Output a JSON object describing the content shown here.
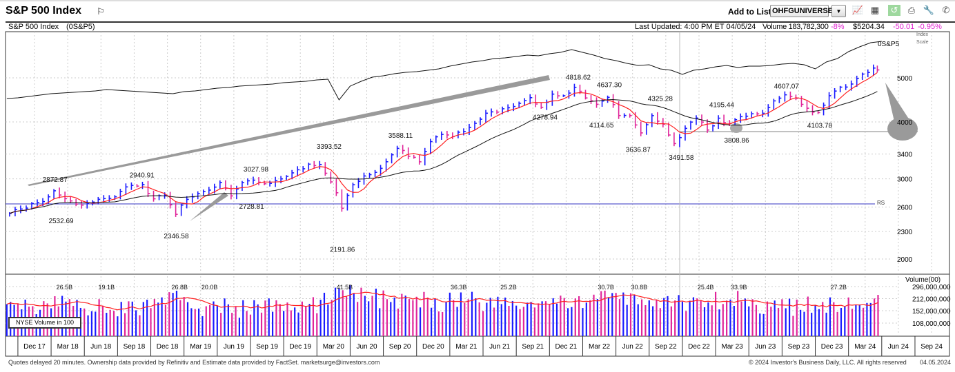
{
  "header": {
    "title": "S&P 500 Index",
    "flag_icon": "flag-icon",
    "add_to_list_label": "Add to List:",
    "list_value": "OHFGUNIVERSE",
    "toolbar_icons": [
      "line-chart-icon",
      "layout-grid-icon",
      "refresh-chart-icon",
      "print-icon",
      "wrench-settings-icon",
      "phone-icon"
    ]
  },
  "infobar": {
    "name": "S&P 500 Index",
    "symbol": "(0S&P5)",
    "last_updated": "Last Updated: 4:00 PM ET 04/05/24",
    "volume": "Volume 183,782,300",
    "volume_change": "-8%",
    "price": "$5204.34",
    "change": "-50.01",
    "change_pct": "-0.95%"
  },
  "footer": {
    "left": "Quotes delayed 20 minutes. Ownership data provided by Refinitiv and Estimate data provided by FactSet. marketsurge@investors.com",
    "right": "© 2024 Investor's Business Daily, LLC. All rights reserved",
    "date": "04.05.2024"
  },
  "colors": {
    "up": "#1a1aff",
    "down": "#e0259a",
    "ma_short": "#ff2020",
    "ma_long": "#111111",
    "rs_line": "#111111",
    "rs_baseline": "#3030c0",
    "annotation": "#9a9a9a"
  },
  "chart_data": {
    "type": "ohlc-bar",
    "price_scale": "log",
    "index_scale_label": [
      "Index",
      "Scale"
    ],
    "symbol_label": "0S&P5",
    "rs_label": "RS",
    "price_ticks": [
      5000,
      4000,
      3400,
      3000,
      2600,
      2300,
      2000
    ],
    "months": [
      "2017-09",
      "2017-10",
      "2017-11",
      "2017-12",
      "2018-01",
      "2018-02",
      "2018-03",
      "2018-04",
      "2018-05",
      "2018-06",
      "2018-07",
      "2018-08",
      "2018-09",
      "2018-10",
      "2018-11",
      "2018-12",
      "2019-01",
      "2019-02",
      "2019-03",
      "2019-04",
      "2019-05",
      "2019-06",
      "2019-07",
      "2019-08",
      "2019-09",
      "2019-10",
      "2019-11",
      "2019-12",
      "2020-01",
      "2020-02",
      "2020-03",
      "2020-04",
      "2020-05",
      "2020-06",
      "2020-07",
      "2020-08",
      "2020-09",
      "2020-10",
      "2020-11",
      "2020-12",
      "2021-01",
      "2021-02",
      "2021-03",
      "2021-04",
      "2021-05",
      "2021-06",
      "2021-07",
      "2021-08",
      "2021-09",
      "2021-10",
      "2021-11",
      "2021-12",
      "2022-01",
      "2022-02",
      "2022-03",
      "2022-04",
      "2022-05",
      "2022-06",
      "2022-07",
      "2022-08",
      "2022-09",
      "2022-10",
      "2022-11",
      "2022-12",
      "2023-01",
      "2023-02",
      "2023-03",
      "2023-04",
      "2023-05",
      "2023-06",
      "2023-07",
      "2023-08",
      "2023-09",
      "2023-10",
      "2023-11",
      "2023-12",
      "2024-01",
      "2024-02",
      "2024-03",
      "2024-04"
    ],
    "close": [
      2519,
      2575,
      2648,
      2674,
      2824,
      2714,
      2641,
      2648,
      2705,
      2718,
      2816,
      2902,
      2914,
      2712,
      2760,
      2507,
      2704,
      2784,
      2834,
      2946,
      2752,
      2942,
      2980,
      2926,
      2977,
      3038,
      3141,
      3231,
      3226,
      2954,
      2585,
      2912,
      3044,
      3100,
      3271,
      3500,
      3363,
      3270,
      3622,
      3756,
      3714,
      3811,
      3973,
      4181,
      4204,
      4298,
      4395,
      4523,
      4308,
      4605,
      4567,
      4766,
      4516,
      4374,
      4530,
      4132,
      4132,
      3785,
      4130,
      3955,
      3586,
      3872,
      4080,
      3840,
      4077,
      3970,
      4109,
      4169,
      4180,
      4450,
      4589,
      4508,
      4288,
      4194,
      4568,
      4770,
      4846,
      5096,
      5254,
      5204
    ],
    "rs_line": [
      57,
      58,
      60,
      62,
      64,
      65,
      66,
      67,
      68,
      70,
      69,
      68,
      67,
      66,
      65,
      64,
      67,
      68,
      70,
      72,
      73,
      75,
      76,
      77,
      78,
      80,
      81,
      82,
      84,
      85,
      55,
      75,
      82,
      88,
      90,
      93,
      95,
      96,
      98,
      100,
      104,
      107,
      110,
      112,
      115,
      116,
      118,
      120,
      119,
      122,
      124,
      128,
      124,
      120,
      115,
      112,
      108,
      105,
      106,
      100,
      98,
      92,
      98,
      100,
      103,
      105,
      102,
      104,
      104,
      105,
      107,
      108,
      106,
      100,
      110,
      115,
      125,
      132,
      138,
      140
    ],
    "volume_label": "Volume(00)",
    "volume_ticks": [
      296000000,
      212000000,
      152000000,
      108000000
    ],
    "volume_tick_labels": [
      "296,000,000",
      "212,000,000",
      "152,000,000",
      "108,000,000"
    ],
    "volume": [
      165000000,
      170000000,
      170000000,
      175000000,
      185000000,
      210000000,
      200000000,
      175000000,
      170000000,
      175000000,
      165000000,
      170000000,
      165000000,
      190000000,
      195000000,
      220000000,
      195000000,
      175000000,
      170000000,
      160000000,
      175000000,
      165000000,
      170000000,
      190000000,
      175000000,
      170000000,
      160000000,
      165000000,
      185000000,
      200000000,
      330000000,
      280000000,
      250000000,
      245000000,
      215000000,
      200000000,
      200000000,
      190000000,
      210000000,
      195000000,
      210000000,
      220000000,
      230000000,
      195000000,
      185000000,
      190000000,
      180000000,
      180000000,
      185000000,
      175000000,
      195000000,
      185000000,
      215000000,
      225000000,
      230000000,
      200000000,
      215000000,
      220000000,
      190000000,
      180000000,
      205000000,
      200000000,
      195000000,
      190000000,
      210000000,
      195000000,
      225000000,
      190000000,
      185000000,
      195000000,
      170000000,
      170000000,
      180000000,
      190000000,
      185000000,
      180000000,
      180000000,
      185000000,
      200000000,
      190000000
    ],
    "volume_legend": "NYSE Volume in 100",
    "price_annotations": [
      {
        "text": "2872.87",
        "month": 1.85,
        "value": 2872.87,
        "side": "above"
      },
      {
        "text": "2532.69",
        "month": 2.4,
        "value": 2532.69,
        "side": "below"
      },
      {
        "text": "2940.91",
        "month": 9.7,
        "value": 2940.91,
        "side": "above"
      },
      {
        "text": "2346.58",
        "month": 12.8,
        "value": 2346.58,
        "side": "below"
      },
      {
        "text": "3027.98",
        "month": 20.0,
        "value": 3027.98,
        "side": "above"
      },
      {
        "text": "2728.81",
        "month": 19.6,
        "value": 2728.81,
        "side": "below"
      },
      {
        "text": "3393.52",
        "month": 26.6,
        "value": 3393.52,
        "side": "above"
      },
      {
        "text": "2191.86",
        "month": 27.8,
        "value": 2191.86,
        "side": "below"
      },
      {
        "text": "3588.11",
        "month": 33.05,
        "value": 3588.11,
        "side": "above"
      },
      {
        "text": "4278.94",
        "month": 46.1,
        "value": 4278.94,
        "side": "below"
      },
      {
        "text": "4818.62",
        "month": 49.1,
        "value": 4818.62,
        "side": "above"
      },
      {
        "text": "4637.30",
        "month": 51.9,
        "value": 4637.3,
        "side": "above"
      },
      {
        "text": "4114.65",
        "month": 51.2,
        "value": 4114.65,
        "side": "below"
      },
      {
        "text": "4325.28",
        "month": 56.5,
        "value": 4325.28,
        "side": "above"
      },
      {
        "text": "3636.87",
        "month": 54.5,
        "value": 3636.87,
        "side": "below"
      },
      {
        "text": "3491.58",
        "month": 58.4,
        "value": 3491.58,
        "side": "below"
      },
      {
        "text": "4195.44",
        "month": 62.05,
        "value": 4195.44,
        "side": "above"
      },
      {
        "text": "3808.86",
        "month": 63.4,
        "value": 3808.86,
        "side": "below"
      },
      {
        "text": "4607.07",
        "month": 67.9,
        "value": 4607.07,
        "side": "above"
      },
      {
        "text": "4103.78",
        "month": 70.9,
        "value": 4103.78,
        "side": "below"
      }
    ],
    "volume_annotations": [
      {
        "text": "26.5B",
        "month": 2.7
      },
      {
        "text": "19.1B",
        "month": 6.5
      },
      {
        "text": "26.8B",
        "month": 13.1
      },
      {
        "text": "20.0B",
        "month": 15.8
      },
      {
        "text": "41.5B",
        "month": 28.0
      },
      {
        "text": "36.3B",
        "month": 38.3
      },
      {
        "text": "25.2B",
        "month": 42.8
      },
      {
        "text": "30.7B",
        "month": 51.6
      },
      {
        "text": "30.8B",
        "month": 54.6
      },
      {
        "text": "25.4B",
        "month": 60.6
      },
      {
        "text": "33.9B",
        "month": 63.6
      },
      {
        "text": "27.2B",
        "month": 72.6
      }
    ],
    "x_labels": [
      "Dec 17",
      "Mar 18",
      "Jun 18",
      "Sep 18",
      "Dec 18",
      "Mar 19",
      "Jun 19",
      "Sep 19",
      "Dec 19",
      "Mar 20",
      "Jun 20",
      "Sep 20",
      "Dec 20",
      "Mar 21",
      "Jun 21",
      "Sep 21",
      "Dec 21",
      "Mar 22",
      "Jun 22",
      "Sep 22",
      "Dec 22",
      "Mar 23",
      "Jun 23",
      "Sep 23",
      "Dec 23",
      "Mar 24",
      "Jun 24",
      "Sep 24"
    ],
    "grid": true,
    "reference_level": 3808.86
  }
}
